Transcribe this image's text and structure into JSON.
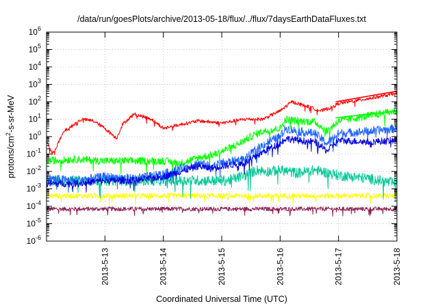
{
  "chart_data": {
    "type": "line",
    "title": "/data/run/goesPlots/archive/2013-05-18/flux/../flux/7daysEarthDataFluxes.txt",
    "xlabel": "Coordinated Universal Time (UTC)",
    "ylabel_main": "protons/cm",
    "ylabel_sup": "2",
    "ylabel_rest": "-s-sr-MeV",
    "yscale": "log",
    "ylim_exp": [
      -6,
      6
    ],
    "xlim": [
      "2013-05-12T00:00",
      "2013-05-18T00:00"
    ],
    "x_ticks": [
      "2013-5-13",
      "2013-5-14",
      "2013-5-15",
      "2013-5-16",
      "2013-5-17",
      "2013-5-18"
    ],
    "y_ticks": [
      {
        "base": "10",
        "exp": "-6"
      },
      {
        "base": "10",
        "exp": "-5"
      },
      {
        "base": "10",
        "exp": "-4"
      },
      {
        "base": "10",
        "exp": "-3"
      },
      {
        "base": "10",
        "exp": "-2"
      },
      {
        "base": "10",
        "exp": "-1"
      },
      {
        "base": "10",
        "exp": "0"
      },
      {
        "base": "10",
        "exp": "1"
      },
      {
        "base": "10",
        "exp": "2"
      },
      {
        "base": "10",
        "exp": "3"
      },
      {
        "base": "10",
        "exp": "4"
      },
      {
        "base": "10",
        "exp": "5"
      },
      {
        "base": "10",
        "exp": "6"
      }
    ],
    "grid": true,
    "series": [
      {
        "color": "#8b2252",
        "noise": 0.12,
        "x": [
          0,
          1,
          2,
          3,
          4,
          5,
          6
        ],
        "y": [
          7e-05,
          7e-05,
          7e-05,
          7e-05,
          7e-05,
          7e-05,
          7e-05
        ]
      },
      {
        "color": "#ffff00",
        "noise": 0.15,
        "x": [
          0,
          1,
          2,
          3,
          4,
          5,
          6
        ],
        "y": [
          0.0004,
          0.0004,
          0.0004,
          0.0004,
          0.0004,
          0.0004,
          0.0004
        ]
      },
      {
        "color": "#00c896",
        "noise": 0.3,
        "x": [
          0,
          0.5,
          1,
          1.5,
          2,
          2.5,
          2.9,
          3.1,
          3.4,
          3.6,
          3.8,
          4.0,
          4.3,
          4.6,
          5.0,
          5.5,
          6.0
        ],
        "y": [
          0.003,
          0.003,
          0.003,
          0.003,
          0.003,
          0.003,
          0.003,
          0.003,
          0.006,
          0.012,
          0.01,
          0.012,
          0.008,
          0.012,
          0.006,
          0.004,
          0.002
        ]
      },
      {
        "color": "#00ff00",
        "noise": 0.22,
        "x": [
          0,
          0.5,
          1,
          1.5,
          2,
          2.3,
          2.6,
          2.9,
          3.1,
          3.3,
          3.5,
          3.7,
          4.0,
          4.1,
          4.3,
          4.6,
          4.8,
          5.0,
          5.5,
          6.0
        ],
        "y": [
          0.04,
          0.05,
          0.04,
          0.04,
          0.04,
          0.03,
          0.06,
          0.1,
          0.2,
          0.4,
          1.0,
          2.0,
          3.0,
          10,
          8,
          7,
          2,
          8,
          15,
          30
        ]
      },
      {
        "color": "#1e64ff",
        "noise": 0.25,
        "x": [
          0,
          0.5,
          1,
          1.5,
          2,
          2.3,
          2.6,
          2.8,
          3.0,
          3.2,
          3.4,
          3.6,
          3.8,
          4.0,
          4.1,
          4.3,
          4.6,
          4.8,
          5.0,
          5.5,
          6.0
        ],
        "y": [
          0.004,
          0.003,
          0.005,
          0.004,
          0.007,
          0.015,
          0.03,
          0.02,
          0.03,
          0.04,
          0.05,
          0.2,
          0.5,
          1.0,
          3.0,
          2.0,
          1.5,
          0.4,
          1.5,
          2.0,
          3.0
        ]
      },
      {
        "color": "#0000dc",
        "noise": 0.2,
        "x": [
          0,
          0.5,
          1,
          1.5,
          2,
          2.3,
          2.6,
          2.8,
          3.0,
          3.2,
          3.4,
          3.6,
          3.8,
          4.0,
          4.1,
          4.3,
          4.6,
          4.8,
          5.0,
          5.5,
          6.0
        ],
        "y": [
          0.002,
          0.002,
          0.003,
          0.003,
          0.005,
          0.01,
          0.02,
          0.015,
          0.02,
          0.025,
          0.03,
          0.08,
          0.2,
          0.4,
          0.8,
          0.6,
          0.5,
          0.15,
          0.6,
          0.5,
          0.6
        ]
      },
      {
        "color": "#ff0000",
        "noise": 0.1,
        "x": [
          0,
          0.1,
          0.15,
          0.3,
          0.6,
          0.8,
          1.0,
          1.2,
          1.3,
          1.5,
          1.8,
          2.0,
          2.3,
          2.6,
          3.0,
          3.4,
          3.7,
          4.0,
          4.2,
          4.5,
          4.7,
          4.9,
          5.0,
          5.5,
          6.0
        ],
        "y": [
          0.6,
          0.1,
          0.2,
          2,
          10,
          8,
          3,
          0.8,
          5,
          20,
          10,
          3,
          5,
          8,
          6,
          10,
          10,
          30,
          100,
          50,
          30,
          50,
          80,
          150,
          300
        ]
      },
      {
        "color": "#ff0000",
        "noise": 0,
        "x": [
          4.95,
          6.0
        ],
        "y": [
          100,
          400
        ]
      },
      {
        "color": "#00ff00",
        "noise": 0,
        "x": [
          4.95,
          6.0
        ],
        "y": [
          12,
          30
        ]
      }
    ]
  }
}
